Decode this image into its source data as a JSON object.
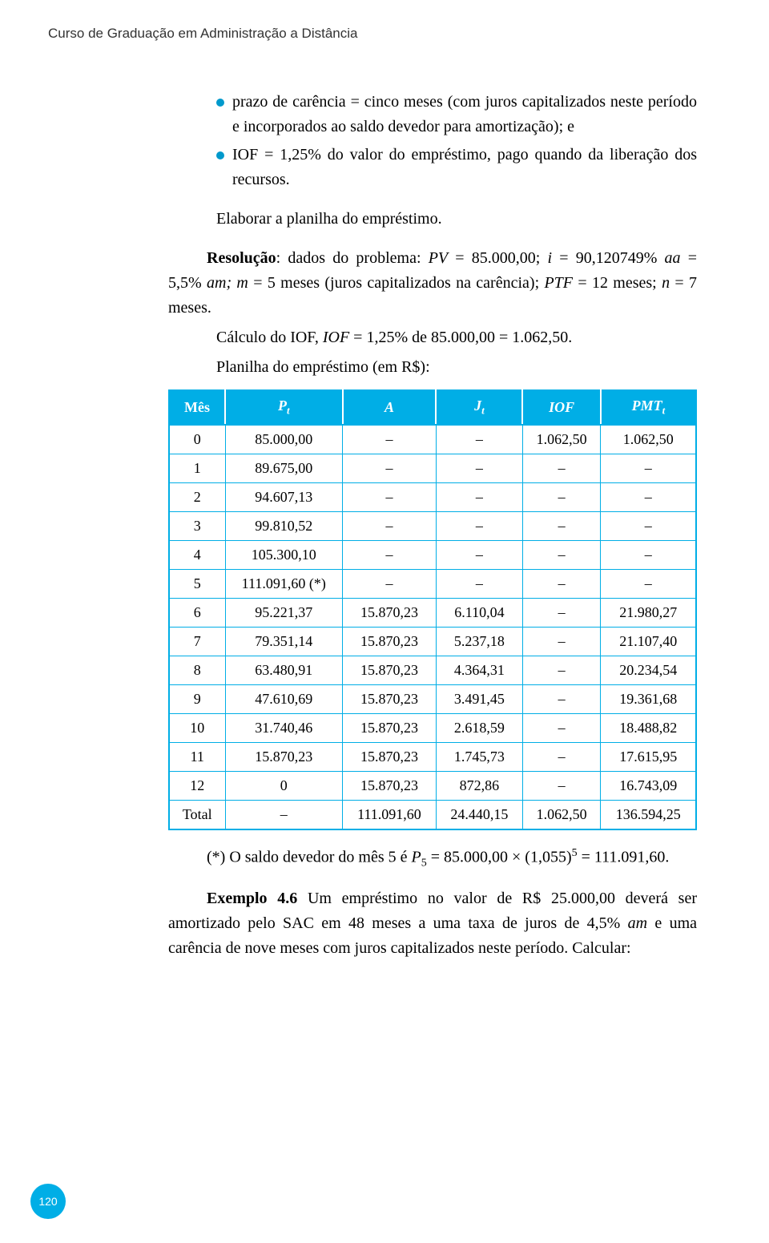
{
  "running_head": "Curso de Graduação em Administração a Distância",
  "bullets": [
    "prazo de carência = cinco meses (com juros capitalizados neste período e incorporados ao saldo devedor para amortização); e",
    "IOF = 1,25% do valor do empréstimo, pago quando da liberação dos recursos."
  ],
  "elaborar": "Elaborar a planilha do empréstimo.",
  "resolucao_html": "<span class=\"b\">Resolução</span>: dados do problema: <span class=\"i\">PV</span> = 85.000,00;  <span class=\"i\">i</span> = 90,120749% <span class=\"i\">aa</span> = 5,5% <span class=\"i\">am; m</span> = 5 meses (juros capitalizados na carência); <span class=\"i\">PTF</span> = 12 meses; <span class=\"i\">n</span> = 7 meses.",
  "calc1_html": "Cálculo do IOF, <span class=\"i\">IOF</span> = 1,25% de 85.000,00 = 1.062,50.",
  "calc2": "Planilha do empréstimo (em R$):",
  "table": {
    "headers": [
      "Mês",
      "P<sub>t</sub>",
      "A",
      "J<sub>t</sub>",
      "IOF",
      "PMT<sub>t</sub>"
    ],
    "rows": [
      [
        "0",
        "85.000,00",
        "–",
        "–",
        "1.062,50",
        "1.062,50"
      ],
      [
        "1",
        "89.675,00",
        "–",
        "–",
        "–",
        "–"
      ],
      [
        "2",
        "94.607,13",
        "–",
        "–",
        "–",
        "–"
      ],
      [
        "3",
        "99.810,52",
        "–",
        "–",
        "–",
        "–"
      ],
      [
        "4",
        "105.300,10",
        "–",
        "–",
        "–",
        "–"
      ],
      [
        "5",
        "111.091,60 (*)",
        "–",
        "–",
        "–",
        "–"
      ],
      [
        "6",
        "95.221,37",
        "15.870,23",
        "6.110,04",
        "–",
        "21.980,27"
      ],
      [
        "7",
        "79.351,14",
        "15.870,23",
        "5.237,18",
        "–",
        "21.107,40"
      ],
      [
        "8",
        "63.480,91",
        "15.870,23",
        "4.364,31",
        "–",
        "20.234,54"
      ],
      [
        "9",
        "47.610,69",
        "15.870,23",
        "3.491,45",
        "–",
        "19.361,68"
      ],
      [
        "10",
        "31.740,46",
        "15.870,23",
        "2.618,59",
        "–",
        "18.488,82"
      ],
      [
        "11",
        "15.870,23",
        "15.870,23",
        "1.745,73",
        "–",
        "17.615,95"
      ],
      [
        "12",
        "0",
        "15.870,23",
        "872,86",
        "–",
        "16.743,09"
      ],
      [
        "Total",
        "–",
        "111.091,60",
        "24.440,15",
        "1.062,50",
        "136.594,25"
      ]
    ]
  },
  "footnote_html": "(*) O saldo devedor do mês 5 é <span class=\"i\">P</span><sub class=\"small\">5</sub> = 85.000,00 × (1,055)<sup>5</sup> = 111.091,60.",
  "exemplo_html": "<span class=\"b\">Exemplo 4.6</span> Um empréstimo no valor de R$ 25.000,00 deverá ser amortizado pelo SAC em 48 meses a uma taxa de juros de 4,5% <span class=\"i\">am</span> e uma carência de nove meses com juros capitalizados neste período. Calcular:",
  "page_number": "120",
  "colors": {
    "accent": "#00aee6"
  }
}
